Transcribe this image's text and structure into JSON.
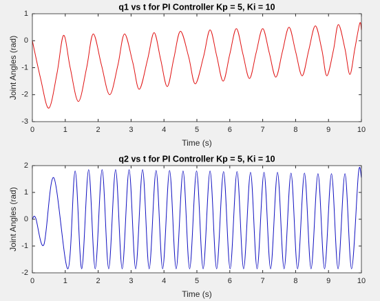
{
  "chart_data": [
    {
      "type": "line",
      "title": "q1 vs t for PI Controller Kp = 5, Ki = 10",
      "x_label": "Time (s)",
      "y_label": "Joint Angles (rad)",
      "xlim": [
        0,
        10
      ],
      "xticks": [
        0,
        1,
        2,
        3,
        4,
        5,
        6,
        7,
        8,
        9,
        10
      ],
      "ylim": [
        -3,
        1
      ],
      "yticks": [
        -3,
        -2,
        -1,
        0,
        1
      ],
      "series": [
        {
          "color": "#e01010",
          "x": [
            0,
            0.25,
            0.5,
            0.75,
            0.95,
            1.15,
            1.4,
            1.65,
            1.85,
            2.1,
            2.35,
            2.6,
            2.8,
            3.05,
            3.25,
            3.5,
            3.7,
            3.9,
            4.1,
            4.3,
            4.5,
            4.75,
            4.95,
            5.2,
            5.4,
            5.6,
            5.8,
            6.0,
            6.2,
            6.4,
            6.6,
            6.8,
            7.0,
            7.2,
            7.4,
            7.6,
            7.8,
            8.0,
            8.2,
            8.4,
            8.6,
            8.8,
            8.95,
            9.15,
            9.3,
            9.5,
            9.65,
            9.8,
            9.95,
            10
          ],
          "values": [
            0,
            -1.4,
            -2.5,
            -1.2,
            0.2,
            -1.0,
            -2.25,
            -1.0,
            0.25,
            -0.9,
            -2.0,
            -0.9,
            0.25,
            -0.8,
            -1.8,
            -0.7,
            0.3,
            -0.7,
            -1.7,
            -0.65,
            0.35,
            -0.6,
            -1.6,
            -0.6,
            0.4,
            -0.55,
            -1.5,
            -0.5,
            0.45,
            -0.5,
            -1.4,
            -0.45,
            0.45,
            -0.45,
            -1.35,
            -0.4,
            0.5,
            -0.4,
            -1.3,
            -0.35,
            0.55,
            -0.35,
            -1.3,
            -0.35,
            0.6,
            -0.3,
            -1.25,
            -0.3,
            0.65,
            0.4
          ]
        }
      ]
    },
    {
      "type": "line",
      "title": "q2 vs t for PI Controller Kp = 5, Ki = 10",
      "x_label": "Time (s)",
      "y_label": "Joint Angles (rad)",
      "xlim": [
        0,
        10
      ],
      "xticks": [
        0,
        1,
        2,
        3,
        4,
        5,
        6,
        7,
        8,
        9,
        10
      ],
      "ylim": [
        -2,
        2
      ],
      "yticks": [
        -2,
        -1,
        0,
        1,
        2
      ],
      "series": [
        {
          "color": "#1010c0",
          "x": [
            0,
            0.1,
            0.35,
            0.65,
            1.08,
            1.3,
            1.5,
            1.71,
            1.91,
            2.12,
            2.32,
            2.53,
            2.73,
            2.94,
            3.14,
            3.35,
            3.55,
            3.76,
            3.96,
            4.17,
            4.37,
            4.58,
            4.78,
            4.99,
            5.19,
            5.4,
            5.6,
            5.81,
            6.01,
            6.22,
            6.42,
            6.63,
            6.83,
            7.04,
            7.24,
            7.45,
            7.65,
            7.86,
            8.06,
            8.27,
            8.47,
            8.68,
            8.88,
            9.09,
            9.29,
            9.5,
            9.7,
            9.91,
            10
          ],
          "values": [
            0,
            0.05,
            -0.95,
            1.55,
            -1.85,
            1.8,
            -1.85,
            1.85,
            -1.85,
            1.85,
            -1.85,
            1.85,
            -1.85,
            1.85,
            -1.85,
            1.85,
            -1.85,
            1.82,
            -1.85,
            1.82,
            -1.85,
            1.8,
            -1.85,
            1.8,
            -1.85,
            1.8,
            -1.85,
            1.78,
            -1.85,
            1.78,
            -1.85,
            1.75,
            -1.85,
            1.75,
            -1.85,
            1.75,
            -1.85,
            1.72,
            -1.85,
            1.72,
            -1.85,
            1.7,
            -1.85,
            1.7,
            -1.85,
            1.7,
            -1.85,
            1.72,
            1.55
          ]
        }
      ]
    }
  ]
}
